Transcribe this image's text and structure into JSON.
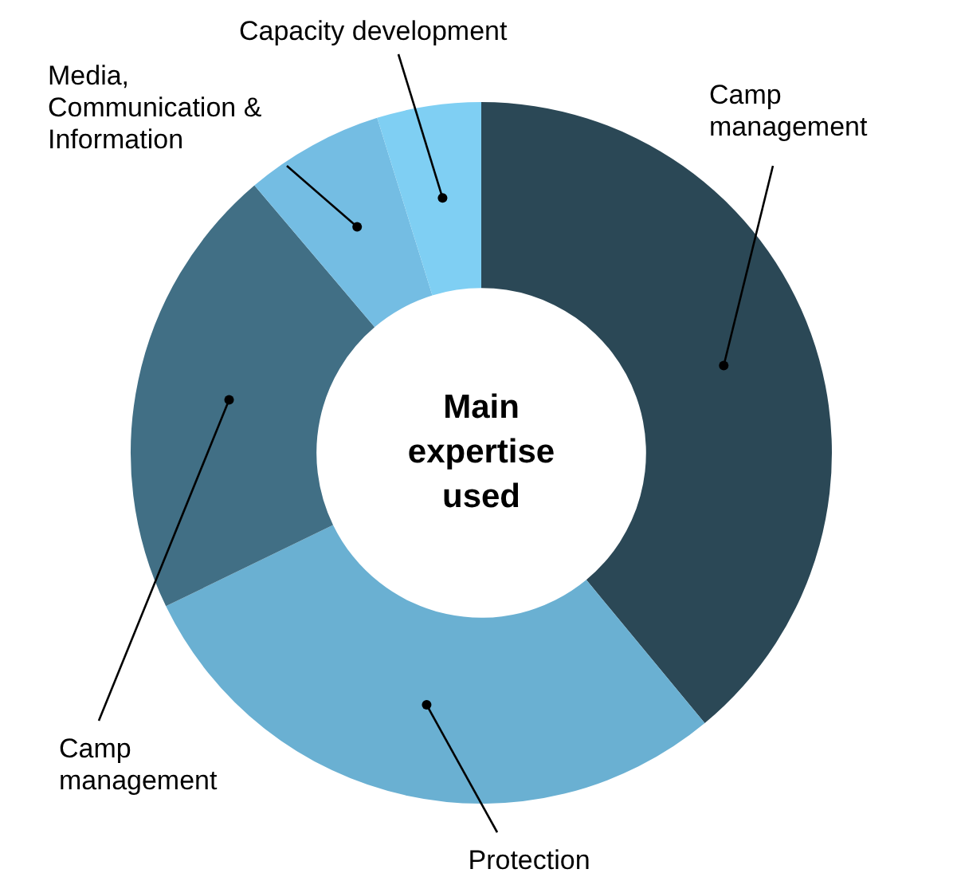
{
  "chart_data": {
    "type": "donut",
    "title": "Main expertise used",
    "categories": [
      "Camp management",
      "Protection",
      "Camp management",
      "Media, Communication & Information",
      "Capacity development"
    ],
    "values": [
      39,
      28.8,
      21,
      6.4,
      4.8
    ],
    "colors": [
      "#2b4856",
      "#6ab0d2",
      "#416f85",
      "#74bde3",
      "#7fcff3"
    ],
    "legend": false
  }
}
